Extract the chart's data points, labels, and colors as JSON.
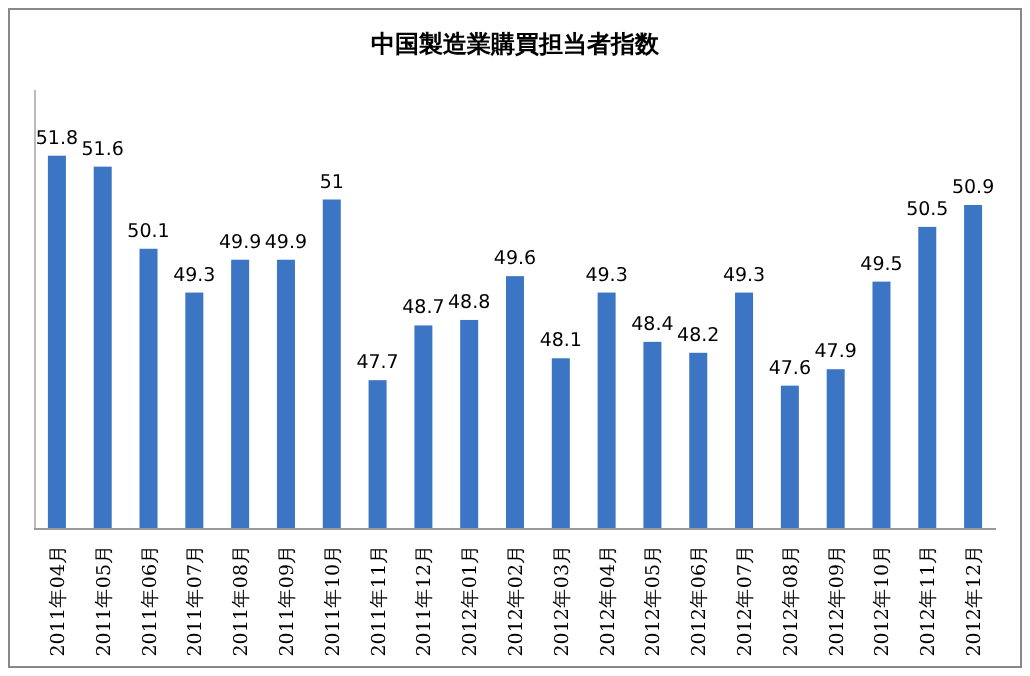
{
  "chart_data": {
    "type": "bar",
    "title": "中国製造業購買担当者指数",
    "categories": [
      "2011年04月",
      "2011年05月",
      "2011年06月",
      "2011年07月",
      "2011年08月",
      "2011年09月",
      "2011年10月",
      "2011年11月",
      "2011年12月",
      "2012年01月",
      "2012年02月",
      "2012年03月",
      "2012年04月",
      "2012年05月",
      "2012年06月",
      "2012年07月",
      "2012年08月",
      "2012年09月",
      "2012年10月",
      "2012年11月",
      "2012年12月"
    ],
    "values": [
      51.8,
      51.6,
      50.1,
      49.3,
      49.9,
      49.9,
      51,
      47.7,
      48.7,
      48.8,
      49.6,
      48.1,
      49.3,
      48.4,
      48.2,
      49.3,
      47.6,
      47.9,
      49.5,
      50.5,
      50.9
    ],
    "color": "#3b75c4",
    "ylim": [
      45,
      53
    ],
    "data_labels": true
  }
}
